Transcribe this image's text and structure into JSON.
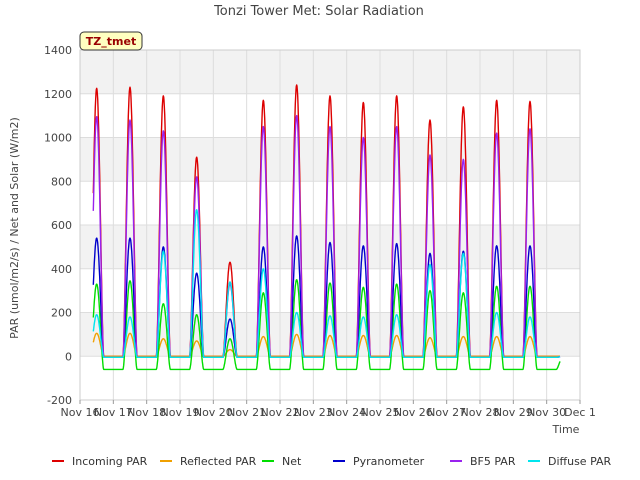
{
  "chart_data": {
    "type": "line",
    "title": "Tonzi Tower Met: Solar Radiation",
    "xlabel": "Time",
    "ylabel": "PAR (umol/m2/s) / Net and Solar (W/m2)",
    "badge": "TZ_tmet",
    "ylim": [
      -200,
      1400
    ],
    "yticks": [
      -200,
      0,
      200,
      400,
      600,
      800,
      1000,
      1200,
      1400
    ],
    "xlim": [
      16,
      31
    ],
    "xticks": [
      {
        "v": 16,
        "label": "Nov 16"
      },
      {
        "v": 17,
        "label": "Nov 17"
      },
      {
        "v": 18,
        "label": "Nov 18"
      },
      {
        "v": 19,
        "label": "Nov 19"
      },
      {
        "v": 20,
        "label": "Nov 20"
      },
      {
        "v": 21,
        "label": "Nov 21"
      },
      {
        "v": 22,
        "label": "Nov 22"
      },
      {
        "v": 23,
        "label": "Nov 23"
      },
      {
        "v": 24,
        "label": "Nov 24"
      },
      {
        "v": 25,
        "label": "Nov 25"
      },
      {
        "v": 26,
        "label": "Nov 26"
      },
      {
        "v": 27,
        "label": "Nov 27"
      },
      {
        "v": 28,
        "label": "Nov 28"
      },
      {
        "v": 29,
        "label": "Nov 29"
      },
      {
        "v": 30,
        "label": "Nov 30"
      },
      {
        "v": 31,
        "label": "Dec 1"
      }
    ],
    "grid": true,
    "legend_position": "bottom",
    "x_start": 16.4,
    "x_end": 30.4,
    "days": [
      16.5,
      17.5,
      18.5,
      19.5,
      20.5,
      21.5,
      22.5,
      23.5,
      24.5,
      25.5,
      26.5,
      27.5,
      28.5,
      29.5
    ],
    "series": [
      {
        "name": "Incoming PAR",
        "color": "#dd0000",
        "night": 0,
        "peaks": [
          0,
          1225,
          1230,
          1190,
          910,
          430,
          1170,
          1240,
          1190,
          1160,
          1190,
          1080,
          1140,
          1170,
          1165
        ]
      },
      {
        "name": "Reflected PAR",
        "color": "#f0a000",
        "night": 0,
        "peaks": [
          0,
          105,
          105,
          80,
          70,
          30,
          90,
          100,
          95,
          95,
          95,
          85,
          90,
          90,
          90
        ]
      },
      {
        "name": "Net",
        "color": "#00dd00",
        "night": -60,
        "peaks": [
          0,
          330,
          345,
          240,
          190,
          80,
          290,
          350,
          335,
          315,
          330,
          300,
          290,
          320,
          320
        ]
      },
      {
        "name": "Pyranometer",
        "color": "#0000cc",
        "night": -5,
        "peaks": [
          0,
          540,
          540,
          500,
          380,
          170,
          500,
          550,
          520,
          505,
          515,
          470,
          480,
          505,
          505
        ]
      },
      {
        "name": "BF5 PAR",
        "color": "#9922ee",
        "night": -5,
        "peaks": [
          0,
          1095,
          1080,
          1030,
          820,
          330,
          1050,
          1100,
          1050,
          1000,
          1050,
          920,
          900,
          1020,
          1040
        ]
      },
      {
        "name": "Diffuse PAR",
        "color": "#00e5ee",
        "night": -5,
        "peaks": [
          0,
          190,
          180,
          480,
          670,
          340,
          400,
          200,
          185,
          180,
          190,
          420,
          470,
          200,
          180
        ]
      }
    ]
  }
}
